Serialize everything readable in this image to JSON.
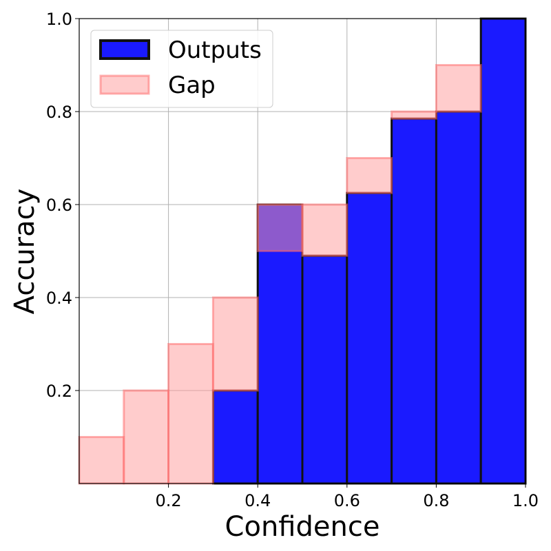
{
  "chart_data": {
    "type": "bar",
    "xlabel": "Confidence",
    "ylabel": "Accuracy",
    "xlim": [
      0,
      1
    ],
    "ylim": [
      0,
      1
    ],
    "grid": true,
    "legend_position": "top-left",
    "bins": [
      {
        "left": 0.0,
        "right": 0.1
      },
      {
        "left": 0.1,
        "right": 0.2
      },
      {
        "left": 0.2,
        "right": 0.3
      },
      {
        "left": 0.3,
        "right": 0.4
      },
      {
        "left": 0.4,
        "right": 0.5
      },
      {
        "left": 0.5,
        "right": 0.6
      },
      {
        "left": 0.6,
        "right": 0.7
      },
      {
        "left": 0.7,
        "right": 0.8
      },
      {
        "left": 0.8,
        "right": 0.9
      },
      {
        "left": 0.9,
        "right": 1.0
      }
    ],
    "series": [
      {
        "name": "Outputs",
        "color": "#1a1aff",
        "edge_color": "#111111",
        "values": [
          0,
          0,
          0,
          0.2,
          0.6,
          0.49,
          0.625,
          0.785,
          0.8,
          1.0
        ]
      },
      {
        "name": "Gap",
        "color": "#ff9999",
        "edge_color": "#ff6666",
        "opacity": 0.5,
        "values": [
          0.1,
          0.2,
          0.3,
          0.4,
          0.5,
          0.6,
          0.7,
          0.8,
          0.9,
          1.0
        ]
      }
    ],
    "x_ticks": [
      {
        "value": 0.2,
        "label": "0.2"
      },
      {
        "value": 0.4,
        "label": "0.4"
      },
      {
        "value": 0.6,
        "label": "0.6"
      },
      {
        "value": 0.8,
        "label": "0.8"
      },
      {
        "value": 1.0,
        "label": "1.0"
      }
    ],
    "y_ticks": [
      {
        "value": 0.2,
        "label": "0.2"
      },
      {
        "value": 0.4,
        "label": "0.4"
      },
      {
        "value": 0.6,
        "label": "0.6"
      },
      {
        "value": 0.8,
        "label": "0.8"
      },
      {
        "value": 1.0,
        "label": "1.0"
      }
    ]
  }
}
